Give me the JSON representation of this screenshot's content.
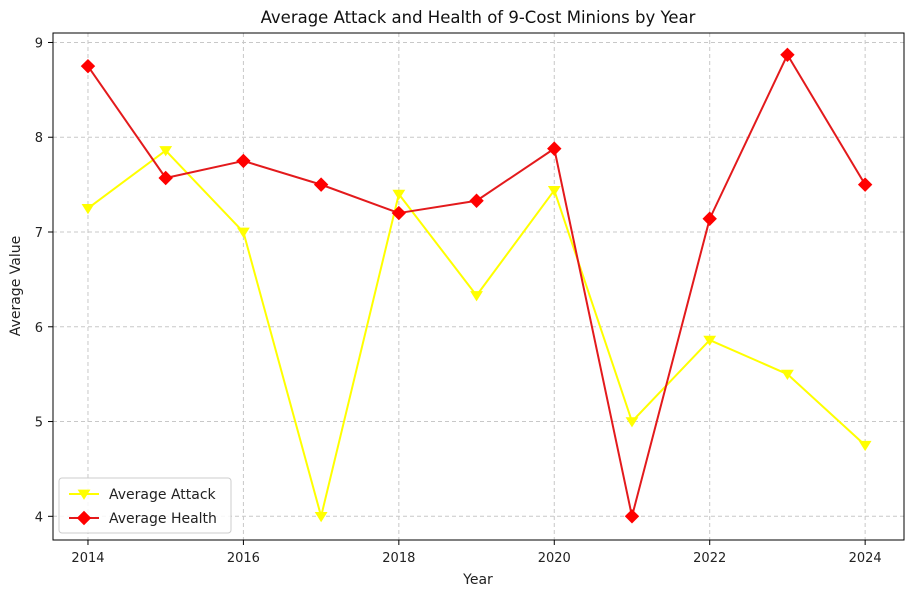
{
  "chart_data": {
    "type": "line",
    "title": "Average Attack and Health of 9-Cost Minions by Year",
    "xlabel": "Year",
    "ylabel": "Average Value",
    "x": [
      2014,
      2015,
      2016,
      2017,
      2018,
      2019,
      2020,
      2021,
      2022,
      2023,
      2024
    ],
    "xticks": [
      2014,
      2016,
      2018,
      2020,
      2022,
      2024
    ],
    "yticks": [
      4,
      5,
      6,
      7,
      8,
      9
    ],
    "xlim": [
      2013.55,
      2024.5
    ],
    "ylim": [
      3.75,
      9.1
    ],
    "grid": true,
    "legend_position": "lower-left",
    "series": [
      {
        "name": "Average Attack",
        "color": "#ffff00",
        "marker": "triangle-down",
        "values": [
          7.25,
          7.86,
          7.0,
          4.0,
          7.4,
          6.33,
          7.44,
          5.0,
          5.86,
          5.5,
          4.75
        ]
      },
      {
        "name": "Average Health",
        "color": "#e31a1c",
        "marker_color": "#ff0000",
        "marker": "diamond",
        "values": [
          8.75,
          7.57,
          7.75,
          7.5,
          7.2,
          7.33,
          7.88,
          4.0,
          7.14,
          8.87,
          7.5
        ]
      }
    ]
  }
}
